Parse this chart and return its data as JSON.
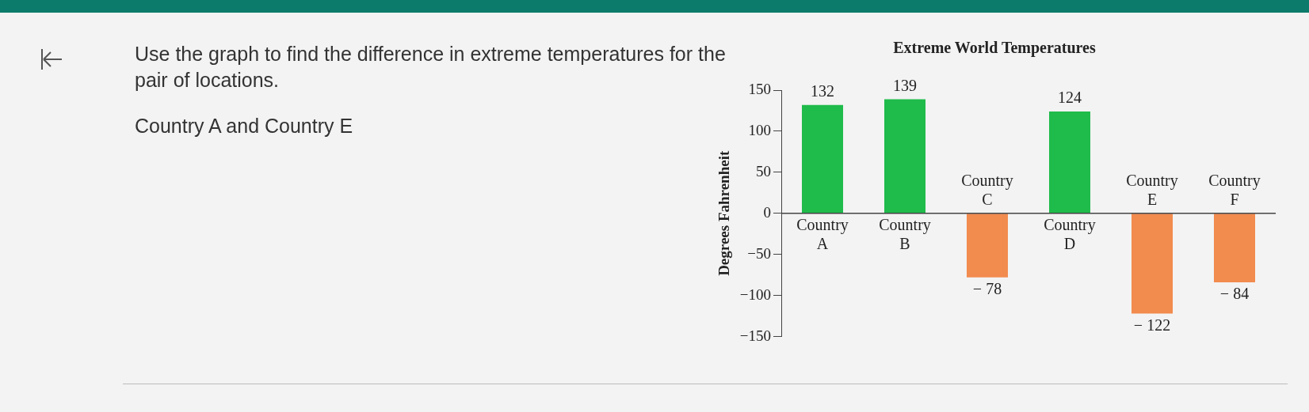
{
  "chart_data": {
    "type": "bar",
    "title": "Extreme World Temperatures",
    "ylabel": "Degrees Fahrenheit",
    "categories": [
      "Country A",
      "Country B",
      "Country C",
      "Country D",
      "Country E",
      "Country F"
    ],
    "values": [
      132,
      139,
      -78,
      124,
      -122,
      -84
    ],
    "colors": [
      "#1fbb4b",
      "#1fbb4b",
      "#f28b4e",
      "#1fbb4b",
      "#f28b4e",
      "#f28b4e"
    ],
    "ylim": [
      -150,
      150
    ],
    "yticks": [
      -150,
      -100,
      -50,
      0,
      50,
      100,
      150
    ],
    "grid": false,
    "legend": false,
    "data_labels": true,
    "annotations": [
      "Use the graph to find the difference in extreme temperatures for the pair of locations.",
      "Country A and Country E"
    ]
  }
}
